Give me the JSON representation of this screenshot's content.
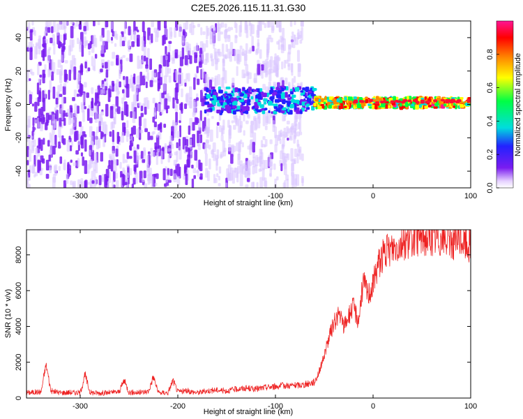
{
  "title": "C2E5.2026.115.11.31.G30",
  "colors": {
    "snr_line": "#ee2222",
    "spectrogram_low": "#e6d2ff",
    "spectrogram_mid": "#7a1cf0",
    "background": "#ffffff"
  },
  "chart_data": [
    {
      "type": "heatmap",
      "name": "spectrogram",
      "xlabel": "Height of straight line (km)",
      "ylabel": "Frequency (Hz)",
      "xlim": [
        -355,
        100
      ],
      "ylim": [
        -50,
        50
      ],
      "xticks": [
        -300,
        -200,
        -100,
        0,
        100
      ],
      "yticks": [
        -40,
        -20,
        0,
        20,
        40
      ],
      "xtick_labels": [
        "-300",
        "-200",
        "-100",
        "0",
        "100"
      ],
      "ytick_labels": [
        "-40",
        "-20",
        "0",
        "20",
        "40"
      ],
      "colorbar": {
        "label": "Normalized spectral amplitude",
        "range": [
          0,
          1
        ],
        "ticks": [
          0.0,
          0.2,
          0.4,
          0.6,
          0.8
        ],
        "tick_labels": [
          "0.0",
          "0.2",
          "0.4",
          "0.6",
          "0.8"
        ],
        "stops": [
          "#ffffff",
          "#e6d2ff",
          "#7a1cf0",
          "#2222ff",
          "#00dddd",
          "#00ff44",
          "#ffff00",
          "#ff8800",
          "#ff0000",
          "#ff1493"
        ]
      },
      "regions": [
        {
          "x_range": [
            -355,
            -172
          ],
          "y_range": [
            -50,
            50
          ],
          "level": "broadband purple noise",
          "amplitude": [
            0.02,
            0.15
          ]
        },
        {
          "x_range": [
            -172,
            -72
          ],
          "y_range": [
            -50,
            50
          ],
          "level": "faint lavender noise",
          "amplitude": [
            0.01,
            0.06
          ]
        },
        {
          "x_range": [
            -172,
            -60
          ],
          "y_range": [
            -5,
            10
          ],
          "level": "blue/cyan band",
          "amplitude": [
            0.2,
            0.45
          ]
        },
        {
          "x_range": [
            -60,
            0
          ],
          "y_range": [
            -2,
            4
          ],
          "level": "green/red band",
          "amplitude": [
            0.4,
            0.9
          ]
        },
        {
          "x_range": [
            0,
            100
          ],
          "y_range": [
            -2,
            4
          ],
          "level": "green band with red peaks",
          "amplitude": [
            0.45,
            0.95
          ]
        }
      ]
    },
    {
      "type": "line",
      "name": "snr",
      "xlabel": "Height of straight line (km)",
      "ylabel": "SNR (10 * v/v)",
      "xlim": [
        -355,
        100
      ],
      "ylim": [
        0,
        9400
      ],
      "xticks": [
        -300,
        -200,
        -100,
        0,
        100
      ],
      "yticks": [
        0,
        2000,
        4000,
        6000,
        8000
      ],
      "xtick_labels": [
        "-300",
        "-200",
        "-100",
        "0",
        "100"
      ],
      "ytick_labels": [
        "0",
        "2000",
        "4000",
        "6000",
        "8000"
      ],
      "series": [
        {
          "name": "SNR",
          "x": [
            -355,
            -340,
            -335,
            -330,
            -320,
            -310,
            -300,
            -295,
            -290,
            -280,
            -270,
            -260,
            -255,
            -250,
            -240,
            -230,
            -225,
            -220,
            -210,
            -205,
            -200,
            -190,
            -180,
            -170,
            -160,
            -150,
            -140,
            -130,
            -120,
            -110,
            -100,
            -90,
            -80,
            -70,
            -60,
            -55,
            -50,
            -45,
            -40,
            -35,
            -30,
            -25,
            -20,
            -15,
            -10,
            -5,
            0,
            5,
            10,
            20,
            30,
            40,
            50,
            60,
            70,
            80,
            85,
            90,
            95,
            100
          ],
          "values": [
            300,
            350,
            1900,
            400,
            300,
            320,
            300,
            1300,
            320,
            280,
            300,
            350,
            1000,
            320,
            300,
            380,
            1200,
            300,
            300,
            1000,
            350,
            400,
            300,
            400,
            450,
            400,
            500,
            550,
            500,
            600,
            650,
            700,
            700,
            750,
            900,
            1500,
            2400,
            3400,
            4200,
            4700,
            4000,
            4600,
            5100,
            4300,
            6500,
            5800,
            6300,
            7500,
            8000,
            8400,
            8700,
            8900,
            9000,
            8900,
            8950,
            8800,
            8700,
            8900,
            8600,
            8500
          ]
        }
      ]
    }
  ]
}
